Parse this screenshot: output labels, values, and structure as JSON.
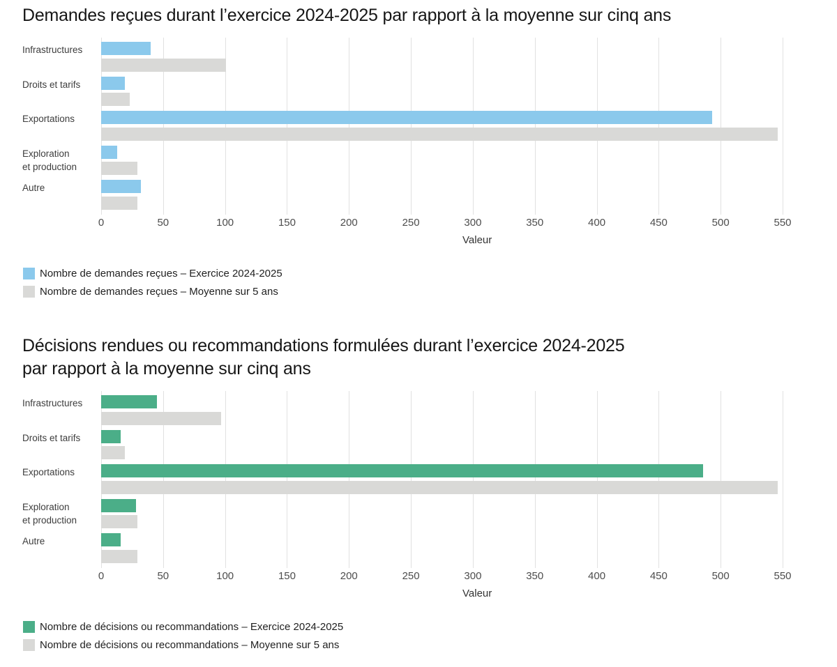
{
  "chart_data": [
    {
      "type": "bar",
      "orientation": "horizontal",
      "title": "Demandes reçues durant l’exercice 2024-2025 par rapport à la moyenne sur cinq ans",
      "title_lines": [
        "Demandes reçues durant l’exercice 2024-2025 par rapport à la moyenne sur cinq ans"
      ],
      "categories": [
        "Infrastructures",
        "Droits et tarifs",
        "Exportations",
        "Exploration et production",
        "Autre"
      ],
      "category_lines": [
        [
          "Infrastructures"
        ],
        [
          "Droits et tarifs"
        ],
        [
          "Exportations"
        ],
        [
          "Exploration",
          "et production"
        ],
        [
          "Autre"
        ]
      ],
      "series": [
        {
          "name": "Nombre de demandes reçues – Exercice 2024-2025",
          "key": "exercice-2024-2025",
          "color": "#8bc9ec",
          "values": [
            40,
            19,
            493,
            13,
            32
          ]
        },
        {
          "name": "Nombre de demandes reçues – Moyenne sur 5 ans",
          "key": "moyenne-sur-5-ans",
          "color": "#d9d9d7",
          "values": [
            101,
            23,
            546,
            29,
            29
          ]
        }
      ],
      "xlabel": "Valeur",
      "xlim": [
        0,
        550
      ],
      "xticks": [
        0,
        50,
        100,
        150,
        200,
        250,
        300,
        350,
        400,
        450,
        500,
        550
      ],
      "grid": true,
      "legend_position": "bottom-left"
    },
    {
      "type": "bar",
      "orientation": "horizontal",
      "title": "Décisions rendues ou recommandations formulées durant l’exercice 2024-2025 par rapport à la moyenne sur cinq ans",
      "title_lines": [
        "Décisions rendues ou recommandations formulées durant l’exercice 2024-2025",
        "par rapport à la moyenne sur cinq ans"
      ],
      "categories": [
        "Infrastructures",
        "Droits et tarifs",
        "Exportations",
        "Exploration et production",
        "Autre"
      ],
      "category_lines": [
        [
          "Infrastructures"
        ],
        [
          "Droits et tarifs"
        ],
        [
          "Exportations"
        ],
        [
          "Exploration",
          "et production"
        ],
        [
          "Autre"
        ]
      ],
      "series": [
        {
          "name": "Nombre de décisions ou recommandations – Exercice 2024-2025",
          "key": "exercice-2024-2025",
          "color": "#4bae88",
          "values": [
            45,
            16,
            486,
            28,
            16
          ]
        },
        {
          "name": "Nombre de décisions ou recommandations – Moyenne sur 5 ans",
          "key": "moyenne-sur-5-ans",
          "color": "#d9d9d7",
          "values": [
            97,
            19,
            546,
            29,
            29
          ]
        }
      ],
      "xlabel": "Valeur",
      "xlim": [
        0,
        550
      ],
      "xticks": [
        0,
        50,
        100,
        150,
        200,
        250,
        300,
        350,
        400,
        450,
        500,
        550
      ],
      "grid": true,
      "legend_position": "bottom-left"
    }
  ],
  "styles": {
    "grid_color": "#e1e1e1",
    "bar_blue": "#8bc9ec",
    "bar_green": "#4bae88",
    "bar_gray": "#d9d9d7"
  }
}
